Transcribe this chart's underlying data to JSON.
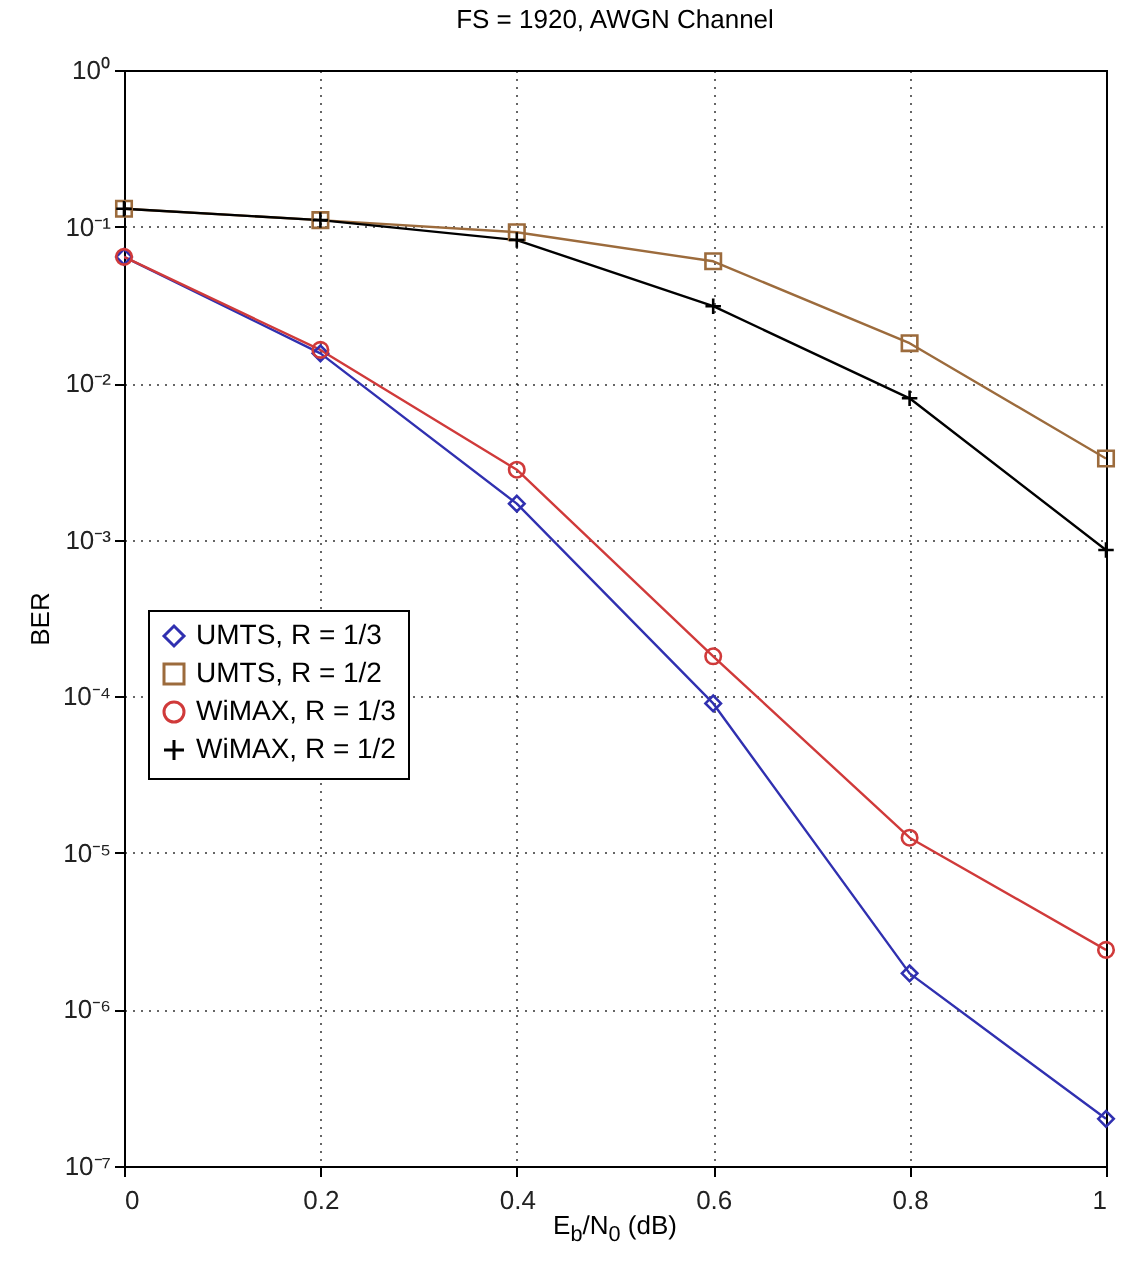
{
  "chart_data": {
    "type": "line",
    "title": "FS = 1920, AWGN Channel",
    "xlabel": "E$_{b}$/N$_{0}$ (dB)",
    "ylabel": "BER",
    "log": "y",
    "grid": true,
    "legend": "left",
    "xlim": [
      0,
      1
    ],
    "xticks": [
      0,
      0.2,
      0.4,
      0.6,
      0.8,
      1
    ],
    "ylim": [
      1e-07,
      1
    ],
    "yticks": [
      {
        "value": 1e-07,
        "label": "10⁻⁷"
      },
      {
        "value": 1e-06,
        "label": "10⁻⁶"
      },
      {
        "value": 1e-05,
        "label": "10⁻⁵"
      },
      {
        "value": 0.0001,
        "label": "10⁻⁴"
      },
      {
        "value": 0.001,
        "label": "10⁻³"
      },
      {
        "value": 0.01,
        "label": "10⁻²"
      },
      {
        "value": 0.1,
        "label": "10⁻¹"
      },
      {
        "value": 1,
        "label": "10⁰"
      }
    ],
    "x": [
      0,
      0.2,
      0.4,
      0.6,
      0.8,
      1
    ],
    "series": [
      {
        "name": "UMTS, R = 1/3",
        "color": "#3030b0",
        "marker": "diamond",
        "values": [
          0.064,
          0.0155,
          0.0017,
          9e-05,
          1.7e-06,
          2e-07
        ]
      },
      {
        "name": "UMTS, R = 1/2",
        "color": "#9c6b3c",
        "marker": "square",
        "values": [
          0.13,
          0.11,
          0.092,
          0.06,
          0.018,
          0.0033
        ]
      },
      {
        "name": "WiMAX, R = 1/3",
        "color": "#d03a3a",
        "marker": "circle",
        "values": [
          0.064,
          0.0163,
          0.0028,
          0.00018,
          1.25e-05,
          2.4e-06
        ]
      },
      {
        "name": "WiMAX, R = 1/2",
        "color": "#000000",
        "marker": "cross",
        "values": [
          0.13,
          0.11,
          0.082,
          0.031,
          0.008,
          0.00086
        ]
      }
    ]
  }
}
